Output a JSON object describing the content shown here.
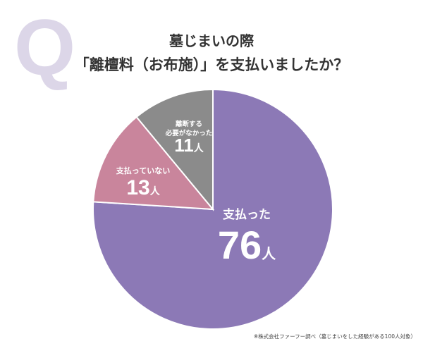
{
  "title_letter": "Q",
  "chart_data": {
    "type": "pie",
    "title": [
      "墓じまいの際",
      "「離檀料（お布施）」を支払いましたか？"
    ],
    "unit": "人",
    "slices": [
      {
        "label": "支払った",
        "value": 76,
        "color": "#8c79b6"
      },
      {
        "label": "支払っていない",
        "value": 13,
        "color": "#c9859c"
      },
      {
        "label": "離断する必要がなかった",
        "label_lines": [
          "離断する",
          "必要がなかった"
        ],
        "value": 11,
        "color": "#8b8b8b"
      }
    ],
    "start": "top",
    "direction": "clockwise"
  },
  "footnote": "※株式会社ファーフー調べ（墓じまいをした経験がある100人対象）"
}
